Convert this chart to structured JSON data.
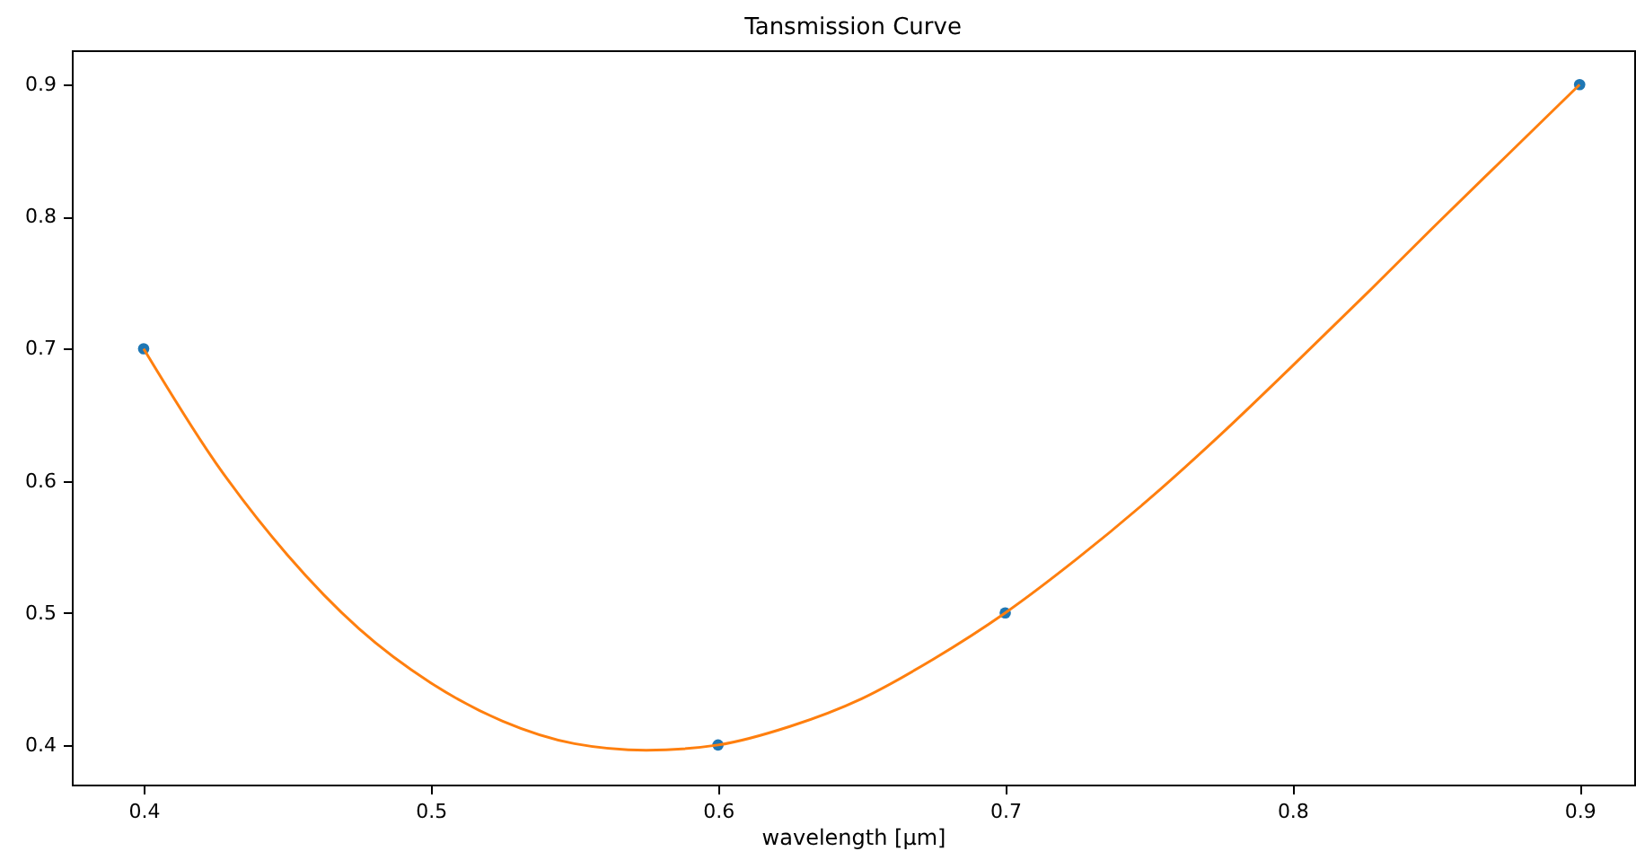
{
  "chart_data": {
    "type": "scatter",
    "title": "Tansmission Curve",
    "xlabel": "wavelength [μm]",
    "xlim": [
      0.375,
      0.919
    ],
    "ylim": [
      0.37,
      0.926
    ],
    "xticks": [
      0.4,
      0.5,
      0.6,
      0.7,
      0.8,
      0.9
    ],
    "yticks": [
      0.4,
      0.5,
      0.6,
      0.7,
      0.8,
      0.9
    ],
    "grid": false,
    "series": [
      {
        "marker": "circle",
        "color": "#1f77b4",
        "x": [
          0.4,
          0.6,
          0.7,
          0.9
        ],
        "values": [
          0.7,
          0.4,
          0.5,
          0.9
        ]
      },
      {
        "type": "line",
        "marker": "none",
        "line_style": "solid",
        "color": "#ff7f0e",
        "x": [
          0.4,
          0.425,
          0.45,
          0.475,
          0.5,
          0.525,
          0.55,
          0.575,
          0.6,
          0.625,
          0.65,
          0.675,
          0.7,
          0.725,
          0.75,
          0.775,
          0.8,
          0.825,
          0.85,
          0.875,
          0.9
        ],
        "values": [
          0.7,
          0.614,
          0.544,
          0.488,
          0.447,
          0.418,
          0.401,
          0.396,
          0.4,
          0.414,
          0.435,
          0.465,
          0.5,
          0.541,
          0.586,
          0.635,
          0.687,
          0.74,
          0.794,
          0.847,
          0.9
        ]
      }
    ]
  }
}
